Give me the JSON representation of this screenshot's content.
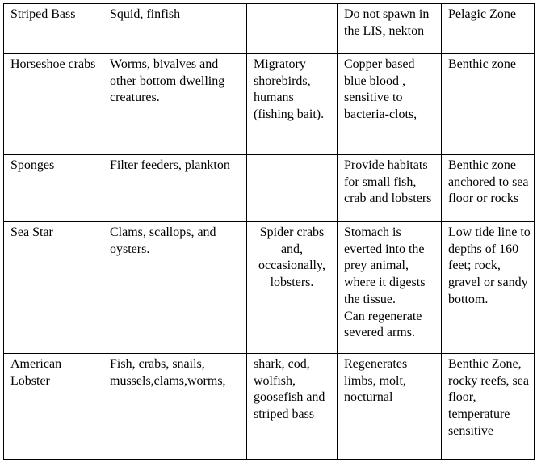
{
  "table": {
    "rows": [
      [
        "Striped Bass",
        "Squid, finfish",
        null,
        "Do not spawn in the LIS, nekton",
        "Pelagic Zone"
      ],
      [
        "Horseshoe crabs",
        "Worms, bivalves and other bottom dwelling creatures.",
        "Migratory shorebirds, humans (fishing bait).",
        "Copper based blue blood , sensitive to bacteria-clots,",
        "Benthic zone"
      ],
      [
        "Sponges",
        "Filter feeders, plankton",
        null,
        "Provide habitats for small fish, crab and lobsters",
        "Benthic zone anchored to sea floor or rocks"
      ],
      [
        "Sea Star",
        "Clams, scallops, and oysters.",
        "Spider crabs and, occasionally, lobsters.",
        "Stomach is everted into the prey animal, where it digests the tissue.\nCan regenerate severed arms.",
        "Low tide line to depths of 160 feet; rock, gravel or sandy bottom."
      ],
      [
        "American Lobster",
        "Fish, crabs, snails, mussels,clams,worms,",
        "shark, cod, wolfish, goosefish and striped bass",
        "Regenerates limbs, molt, nocturnal",
        "Benthic Zone, rocky reefs, sea floor, temperature sensitive"
      ]
    ]
  }
}
